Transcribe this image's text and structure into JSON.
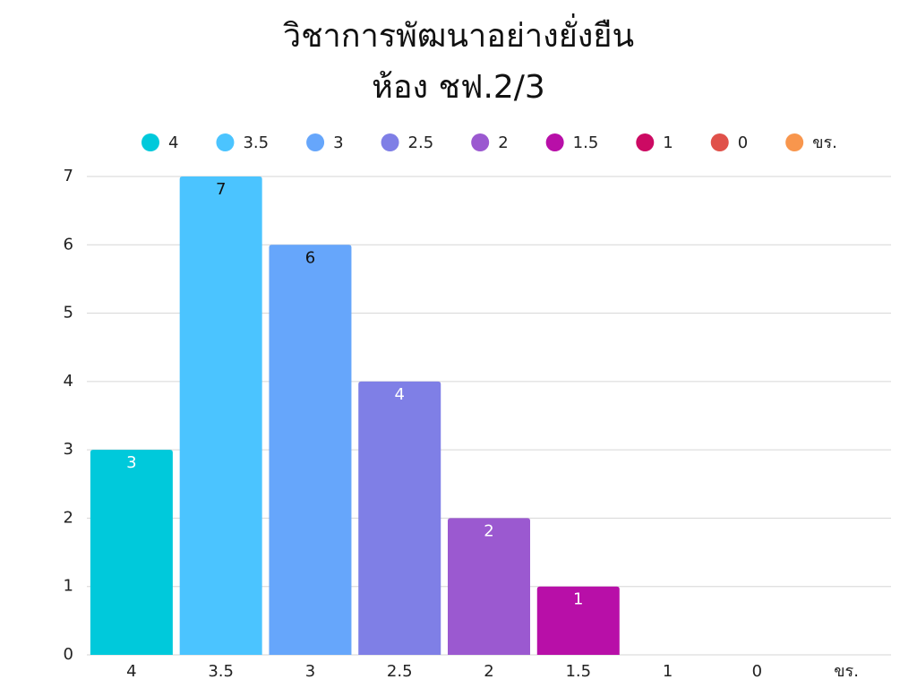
{
  "chart_data": {
    "type": "bar",
    "title": [
      "วิชาการพัฒนาอย่างยั่งยืน",
      "ห้อง ชฟ.2/3"
    ],
    "categories": [
      "4",
      "3.5",
      "3",
      "2.5",
      "2",
      "1.5",
      "1",
      "0",
      "ขร."
    ],
    "values": [
      3,
      7,
      6,
      4,
      2,
      1,
      0,
      0,
      0
    ],
    "colors": [
      "#00c9db",
      "#4bc4ff",
      "#66a6fb",
      "#7f7fe6",
      "#9b59d0",
      "#b80fa8",
      "#cc0a63",
      "#e0514a",
      "#f8964d"
    ],
    "ylim": [
      0,
      7
    ],
    "yticks": [
      0,
      1,
      2,
      3,
      4,
      5,
      6,
      7
    ],
    "grid": true,
    "legend": "top"
  }
}
